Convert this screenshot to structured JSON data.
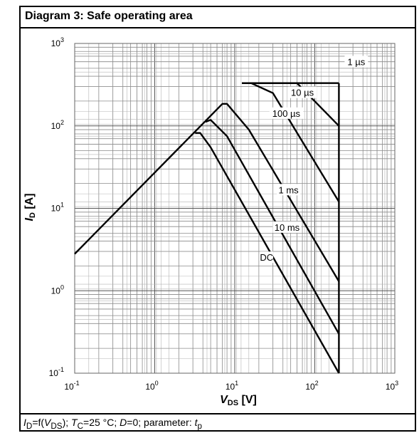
{
  "title": "Diagram 3: Safe operating area",
  "caption_parts": {
    "p1": "I",
    "p1_sub": "D",
    "p2": "=f(",
    "p3": "V",
    "p3_sub": "DS",
    "p4": "); ",
    "p5": "T",
    "p5_sub": "C",
    "p6": "=25 °C; ",
    "p7": "D",
    "p8": "=0; parameter: ",
    "p9": "t",
    "p9_sub": "p"
  },
  "chart_data": {
    "type": "line",
    "x_scale": "log",
    "y_scale": "log",
    "xlim": [
      0.1,
      1000
    ],
    "ylim": [
      0.1,
      1000
    ],
    "grid": true,
    "xlabel": {
      "main": "V",
      "sub": "DS",
      "unit": " [V]"
    },
    "ylabel": {
      "main": "I",
      "sub": "D",
      "unit": " [A]"
    },
    "x_ticks": [
      {
        "base": "10",
        "exp": "-1",
        "value": 0.1
      },
      {
        "base": "10",
        "exp": "0",
        "value": 1
      },
      {
        "base": "10",
        "exp": "1",
        "value": 10
      },
      {
        "base": "10",
        "exp": "2",
        "value": 100
      },
      {
        "base": "10",
        "exp": "3",
        "value": 1000
      }
    ],
    "y_ticks": [
      {
        "base": "10",
        "exp": "-1",
        "value": 0.1
      },
      {
        "base": "10",
        "exp": "0",
        "value": 1
      },
      {
        "base": "10",
        "exp": "1",
        "value": 10
      },
      {
        "base": "10",
        "exp": "2",
        "value": 100
      },
      {
        "base": "10",
        "exp": "3",
        "value": 1000
      }
    ],
    "series": [
      {
        "name": "1 µs",
        "x": [
          12.3,
          200,
          200
        ],
        "y": [
          330,
          330,
          330
        ]
      },
      {
        "name": "10 µs",
        "x": [
          12.3,
          60,
          200,
          200
        ],
        "y": [
          330,
          330,
          100,
          100
        ]
      },
      {
        "name": "100 µs",
        "x": [
          12.3,
          16,
          30,
          200,
          200
        ],
        "y": [
          330,
          330,
          250,
          12,
          12
        ]
      },
      {
        "name": "1 ms",
        "x": [
          0.1,
          7,
          8,
          15,
          200,
          200
        ],
        "y": [
          2.8,
          185,
          185,
          90,
          1.3,
          1.3
        ]
      },
      {
        "name": "10 ms",
        "x": [
          4.3,
          5,
          8,
          200,
          200
        ],
        "y": [
          112,
          118,
          75,
          0.3,
          0.3
        ]
      },
      {
        "name": "DC",
        "x": [
          3.2,
          3.7,
          5,
          200,
          200
        ],
        "y": [
          82,
          82,
          55,
          0.1,
          0.1
        ]
      },
      {
        "name": "limit",
        "x": [
          200,
          200
        ],
        "y": [
          0.1,
          330
        ]
      }
    ],
    "labels": [
      {
        "text": "1 µs",
        "x": 330,
        "y": 590
      },
      {
        "text": "10 µs",
        "x": 70,
        "y": 250
      },
      {
        "text": "100 µs",
        "x": 44,
        "y": 140
      },
      {
        "text": "1 ms",
        "x": 47,
        "y": 16.5
      },
      {
        "text": "10 ms",
        "x": 45,
        "y": 5.8
      },
      {
        "text": "DC",
        "x": 25,
        "y": 2.5
      }
    ]
  }
}
